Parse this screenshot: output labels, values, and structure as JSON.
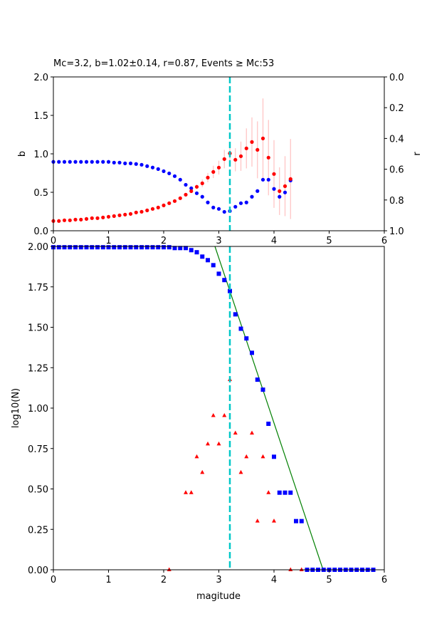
{
  "chart_data": [
    {
      "type": "scatter",
      "title": "Mc=3.2, b=1.02±0.14, r=0.87, Events ≥ Mc:53",
      "xlabel": "",
      "ylabel": "b",
      "ylabel_right": "r",
      "xlim": [
        0,
        6
      ],
      "ylim": [
        0,
        2
      ],
      "ylim_right": [
        1,
        0
      ],
      "x_ticks": [
        "0",
        "1",
        "2",
        "3",
        "4",
        "5",
        "6"
      ],
      "y_ticks": [
        "0.0",
        "0.5",
        "1.0",
        "1.5",
        "2.0"
      ],
      "y_right_ticks": [
        "0.0",
        "0.2",
        "0.4",
        "0.6",
        "0.8",
        "1.0"
      ],
      "mc_line": 3.2,
      "mag": [
        0,
        0.1,
        0.2,
        0.3,
        0.4,
        0.5,
        0.6,
        0.7,
        0.8,
        0.9,
        1.0,
        1.1,
        1.2,
        1.3,
        1.4,
        1.5,
        1.6,
        1.7,
        1.8,
        1.9,
        2.0,
        2.1,
        2.2,
        2.3,
        2.4,
        2.5,
        2.6,
        2.7,
        2.8,
        2.9,
        3.0,
        3.1,
        3.2,
        3.3,
        3.4,
        3.5,
        3.6,
        3.7,
        3.8,
        3.9,
        4.0,
        4.1,
        4.2,
        4.3
      ],
      "series": [
        {
          "name": "b",
          "axis": "left",
          "color": "#ff0000",
          "values": [
            0.127,
            0.127,
            0.136,
            0.136,
            0.145,
            0.145,
            0.154,
            0.164,
            0.164,
            0.173,
            0.182,
            0.191,
            0.201,
            0.21,
            0.219,
            0.238,
            0.247,
            0.265,
            0.284,
            0.302,
            0.33,
            0.358,
            0.386,
            0.423,
            0.469,
            0.515,
            0.571,
            0.617,
            0.691,
            0.765,
            0.821,
            0.932,
            1.006,
            0.923,
            0.969,
            1.071,
            1.154,
            1.052,
            1.2,
            0.951,
            0.738,
            0.515,
            0.58,
            0.673
          ],
          "errors": [
            0,
            0,
            0,
            0,
            0,
            0,
            0,
            0,
            0,
            0,
            0,
            0,
            0,
            0,
            0,
            0,
            0,
            0,
            0,
            0,
            0,
            0,
            0,
            0,
            0,
            0,
            0.03,
            0.05,
            0.06,
            0.08,
            0.09,
            0.12,
            0.14,
            0.15,
            0.19,
            0.26,
            0.32,
            0.37,
            0.52,
            0.49,
            0.44,
            0.31,
            0.39,
            0.52
          ]
        },
        {
          "name": "r",
          "axis": "right",
          "color": "#0000ff",
          "values": [
            0.552,
            0.552,
            0.552,
            0.552,
            0.552,
            0.552,
            0.552,
            0.552,
            0.552,
            0.552,
            0.552,
            0.557,
            0.557,
            0.562,
            0.562,
            0.566,
            0.571,
            0.58,
            0.589,
            0.599,
            0.613,
            0.627,
            0.645,
            0.668,
            0.701,
            0.724,
            0.756,
            0.779,
            0.816,
            0.849,
            0.858,
            0.877,
            0.872,
            0.844,
            0.821,
            0.816,
            0.779,
            0.742,
            0.668,
            0.668,
            0.728,
            0.779,
            0.751,
            0.673
          ]
        }
      ]
    },
    {
      "type": "scatter",
      "title": "",
      "xlabel": "magitude",
      "ylabel": "log10(N)",
      "xlim": [
        0,
        6
      ],
      "ylim": [
        0,
        2
      ],
      "x_ticks": [
        "0",
        "1",
        "2",
        "3",
        "4",
        "5",
        "6"
      ],
      "y_ticks": [
        "0.00",
        "0.25",
        "0.50",
        "0.75",
        "1.00",
        "1.25",
        "1.50",
        "1.75",
        "2.00"
      ],
      "mc_line": 3.2,
      "fit": {
        "b": 1.02,
        "a": 4.988,
        "color": "#008000"
      },
      "series": [
        {
          "name": "cumulative",
          "marker": "square",
          "color": "#0000ff",
          "x": [
            0,
            0.1,
            0.2,
            0.3,
            0.4,
            0.5,
            0.6,
            0.7,
            0.8,
            0.9,
            1.0,
            1.1,
            1.2,
            1.3,
            1.4,
            1.5,
            1.6,
            1.7,
            1.8,
            1.9,
            2.0,
            2.1,
            2.2,
            2.3,
            2.4,
            2.5,
            2.6,
            2.7,
            2.8,
            2.9,
            3.0,
            3.1,
            3.2,
            3.3,
            3.4,
            3.5,
            3.6,
            3.7,
            3.8,
            3.9,
            4.0,
            4.1,
            4.2,
            4.3,
            4.4,
            4.5,
            4.6,
            4.7,
            4.8,
            4.9,
            5.0,
            5.1,
            5.2,
            5.3,
            5.4,
            5.5,
            5.6,
            5.7,
            5.8
          ],
          "values": [
            1.995,
            1.995,
            1.995,
            1.995,
            1.995,
            1.995,
            1.995,
            1.995,
            1.995,
            1.995,
            1.995,
            1.995,
            1.995,
            1.995,
            1.995,
            1.995,
            1.995,
            1.995,
            1.995,
            1.995,
            1.995,
            1.995,
            1.99,
            1.99,
            1.99,
            1.977,
            1.964,
            1.937,
            1.915,
            1.884,
            1.831,
            1.792,
            1.724,
            1.58,
            1.491,
            1.431,
            1.342,
            1.176,
            1.114,
            0.903,
            0.699,
            0.477,
            0.477,
            0.477,
            0.301,
            0.301,
            0,
            0,
            0,
            0,
            0,
            0,
            0,
            0,
            0,
            0,
            0,
            0,
            0
          ]
        },
        {
          "name": "non-cumulative",
          "marker": "triangle",
          "color": "#ff0000",
          "x": [
            2.1,
            2.4,
            2.5,
            2.6,
            2.7,
            2.8,
            2.9,
            3.0,
            3.1,
            3.2,
            3.3,
            3.4,
            3.5,
            3.6,
            3.7,
            3.8,
            3.9,
            4.0,
            4.3,
            4.5
          ],
          "values": [
            0,
            0.477,
            0.477,
            0.699,
            0.602,
            0.778,
            0.954,
            0.778,
            0.954,
            1.176,
            0.845,
            0.602,
            0.699,
            0.845,
            0.301,
            0.699,
            0.477,
            0.301,
            0,
            0
          ]
        }
      ]
    }
  ]
}
